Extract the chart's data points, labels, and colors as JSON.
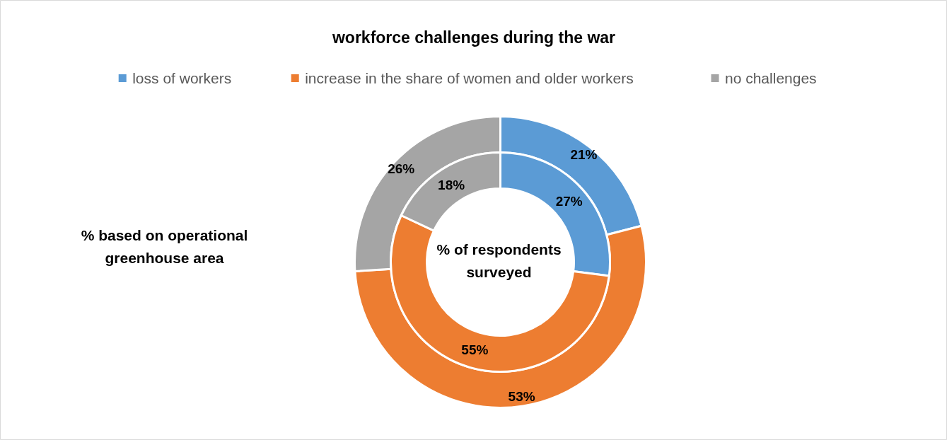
{
  "chart_data": {
    "type": "donut",
    "title": "workforce challenges during the war",
    "categories": [
      "loss of workers",
      "increase in the share of women and older workers",
      "no challenges"
    ],
    "colors": [
      "#5b9bd5",
      "#ed7d31",
      "#a5a5a5"
    ],
    "series": [
      {
        "name": "% based on operational greenhouse area",
        "values": [
          21,
          53,
          26
        ],
        "value_labels": [
          "21%",
          "53%",
          "26%"
        ]
      },
      {
        "name": "% of respondents surveyed",
        "values": [
          27,
          55,
          18
        ],
        "value_labels": [
          "27%",
          "55%",
          "18%"
        ]
      }
    ],
    "legend": "top"
  }
}
